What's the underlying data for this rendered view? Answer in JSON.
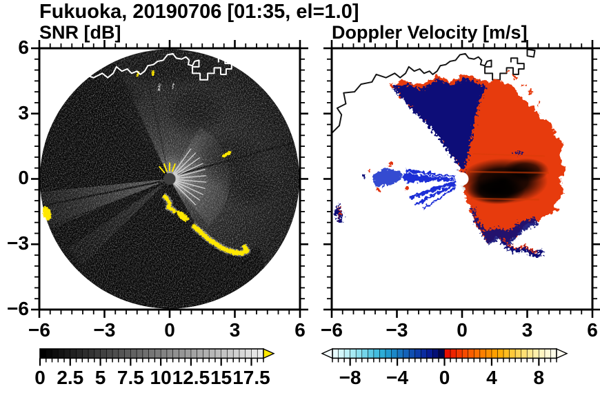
{
  "figure": {
    "title": "Fukuoka, 20190706 [01:35, el=1.0]",
    "station": "Fukuoka",
    "date": "20190706",
    "time": "01:35",
    "elevation_deg": "1.0"
  },
  "axes": {
    "x": {
      "min": -6,
      "max": 6,
      "major_step": 3,
      "minor_step": 0.5,
      "tick_values": [
        -6,
        -3,
        0,
        3,
        6
      ],
      "tick_labels": [
        "−6",
        "−3",
        "0",
        "3",
        "6"
      ]
    },
    "y": {
      "min": -6,
      "max": 6,
      "major_step": 3,
      "minor_step": 0.5,
      "tick_values": [
        6,
        3,
        0,
        -3,
        -6
      ],
      "tick_labels": [
        "6",
        "3",
        "0",
        "−3",
        "−6"
      ]
    }
  },
  "panels": [
    {
      "key": "snr",
      "title": "SNR [dB]",
      "colorbar": {
        "min": 0,
        "max": 18.5,
        "segment_step": 0.5,
        "major_tick_step": 2.5,
        "minor_tick_step": 0.5,
        "tick_labels": [
          {
            "value": 0,
            "text": "0"
          },
          {
            "value": 2.5,
            "text": "2.5"
          },
          {
            "value": 5,
            "text": "5"
          },
          {
            "value": 7.5,
            "text": "7.5"
          },
          {
            "value": 10,
            "text": "10"
          },
          {
            "value": 12.5,
            "text": "12.5"
          },
          {
            "value": 15,
            "text": "15"
          },
          {
            "value": 17.5,
            "text": "17.5"
          }
        ],
        "colormap": "grayscale",
        "start_color": "#000000",
        "end_color": "#ebebeb",
        "over_arrow_color": "#ffe800"
      }
    },
    {
      "key": "velocity",
      "title": "Doppler Velocity [m/s]",
      "colorbar": {
        "min": -9.5,
        "max": 9.5,
        "segment_step": 0.5,
        "minor_tick_step": 0.5,
        "major_tick_values": [
          -8,
          -4,
          0,
          4,
          8
        ],
        "tick_labels": [
          {
            "value": -8,
            "text": "−8"
          },
          {
            "value": -4,
            "text": "−4"
          },
          {
            "value": 0,
            "text": "0"
          },
          {
            "value": 4,
            "text": "4"
          },
          {
            "value": 8,
            "text": "8"
          }
        ],
        "palette": [
          "#e6fbfd",
          "#d2f6fa",
          "#bdf0f7",
          "#a6eaf3",
          "#8ee0ef",
          "#74d5ea",
          "#5bc9e4",
          "#43bcde",
          "#2dadd7",
          "#219bd0",
          "#1c88c8",
          "#1875c1",
          "#1462b9",
          "#104fb1",
          "#0d3da9",
          "#0a2ba0",
          "#071b93",
          "#041077",
          "#02064f",
          "#e90f00",
          "#ee2400",
          "#f23800",
          "#f64b00",
          "#f95d00",
          "#fb6f00",
          "#fd8000",
          "#fe9000",
          "#ff9f00",
          "#ffae08",
          "#ffbc1f",
          "#ffc93a",
          "#ffd557",
          "#ffdf74",
          "#ffe890",
          "#ffefaa",
          "#fff5c2",
          "#fff9d6",
          "#fffce8"
        ],
        "under_arrow_color": "#f4fcfe",
        "over_arrow_color": "#fffdf2"
      }
    }
  ],
  "chart_data": [
    {
      "type": "heatmap",
      "title": "SNR [dB]",
      "units": "dB",
      "x_range": [
        -6,
        6
      ],
      "y_range": [
        -6,
        6
      ],
      "grid": false,
      "legend_position": "bottom",
      "scale": {
        "min": 0,
        "max": 18.5,
        "colormap": "black-to-white grayscale, yellow triangle = above maximum"
      },
      "features": [
        "circular PPI scan of radius 6 centered on the radar at (0,0)",
        "bright SNR fan east and northeast of the radar fading with range",
        "strong (above-scale, yellow) ground-clutter chain along the coast from near (0,-1) curving to (3.5,-3.4)",
        "yellow clutter patch at the far west edge near (-5.6,-1.6) and a short dash near (2.6,1.1)",
        "black beam-blockage shadow sectors toward WNW and over the whole southern half",
        "narrow dark shadow rays toward ENE and WSW",
        "white coastline and blocky harbor outline across the northern part",
        "radar site marked by a dark grey dot at the origin"
      ]
    },
    {
      "type": "heatmap",
      "title": "Doppler Velocity [m/s]",
      "units": "m/s",
      "x_range": [
        -6,
        6
      ],
      "y_range": [
        -6,
        6
      ],
      "grid": false,
      "legend_position": "bottom",
      "scale": {
        "min": -9.5,
        "max": 9.5,
        "colormap": "pale-cyan to navy (negative, toward radar) / red to cream (positive, away)"
      },
      "features": [
        "broad receding (red/orange) flow over the eastern half, brightest orange core 1-3 east of the radar",
        "dark-navy approaching flow band to the north and northwest with speckled red fringe",
        "bright blue approaching wedge due west of the radar with thin streaks toward WSW",
        "isolated echo at west edge near (-5.6,-1.6) and a navy/red clutter arc near (2 to 3.7, -2.8 to -3.5)",
        "white (no data) background, black coastline overlay, white dot at the radar site"
      ]
    }
  ]
}
